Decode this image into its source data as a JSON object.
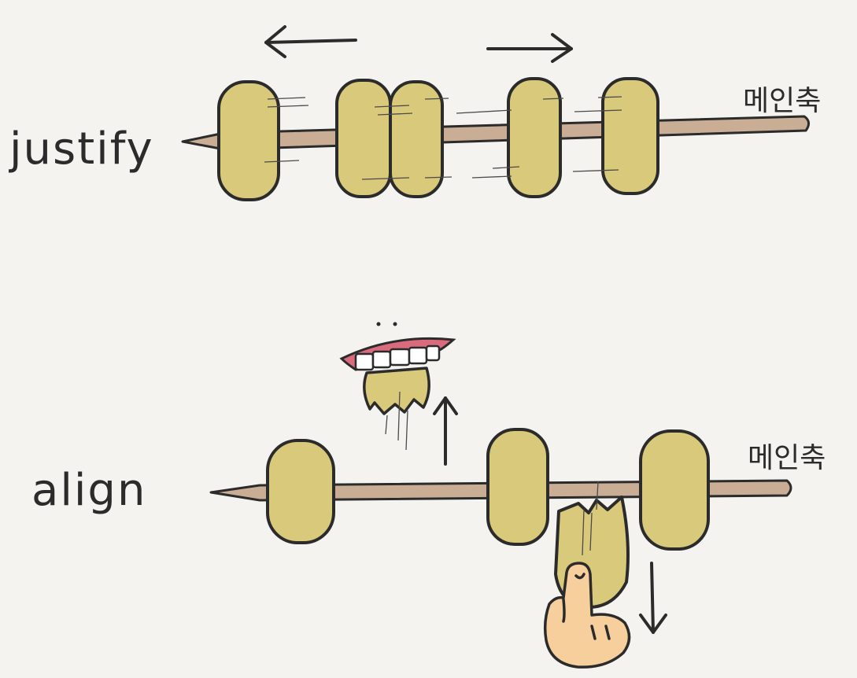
{
  "justify": {
    "label": "justify",
    "axis_label": "메인축",
    "arrows": [
      "left",
      "right"
    ]
  },
  "align": {
    "label": "align",
    "axis_label": "메인축",
    "arrows": [
      "up",
      "down"
    ]
  },
  "colors": {
    "background": "#f4f3f0",
    "skewer": "#c9ad94",
    "rice_cake": "#d9c97a",
    "outline": "#2b2b2b",
    "hand": "#f6cf9c",
    "gum": "#d96b7c"
  },
  "icons": [
    "mouth-icon",
    "hand-icon",
    "arrow-left-icon",
    "arrow-right-icon",
    "arrow-up-icon",
    "arrow-down-icon"
  ]
}
